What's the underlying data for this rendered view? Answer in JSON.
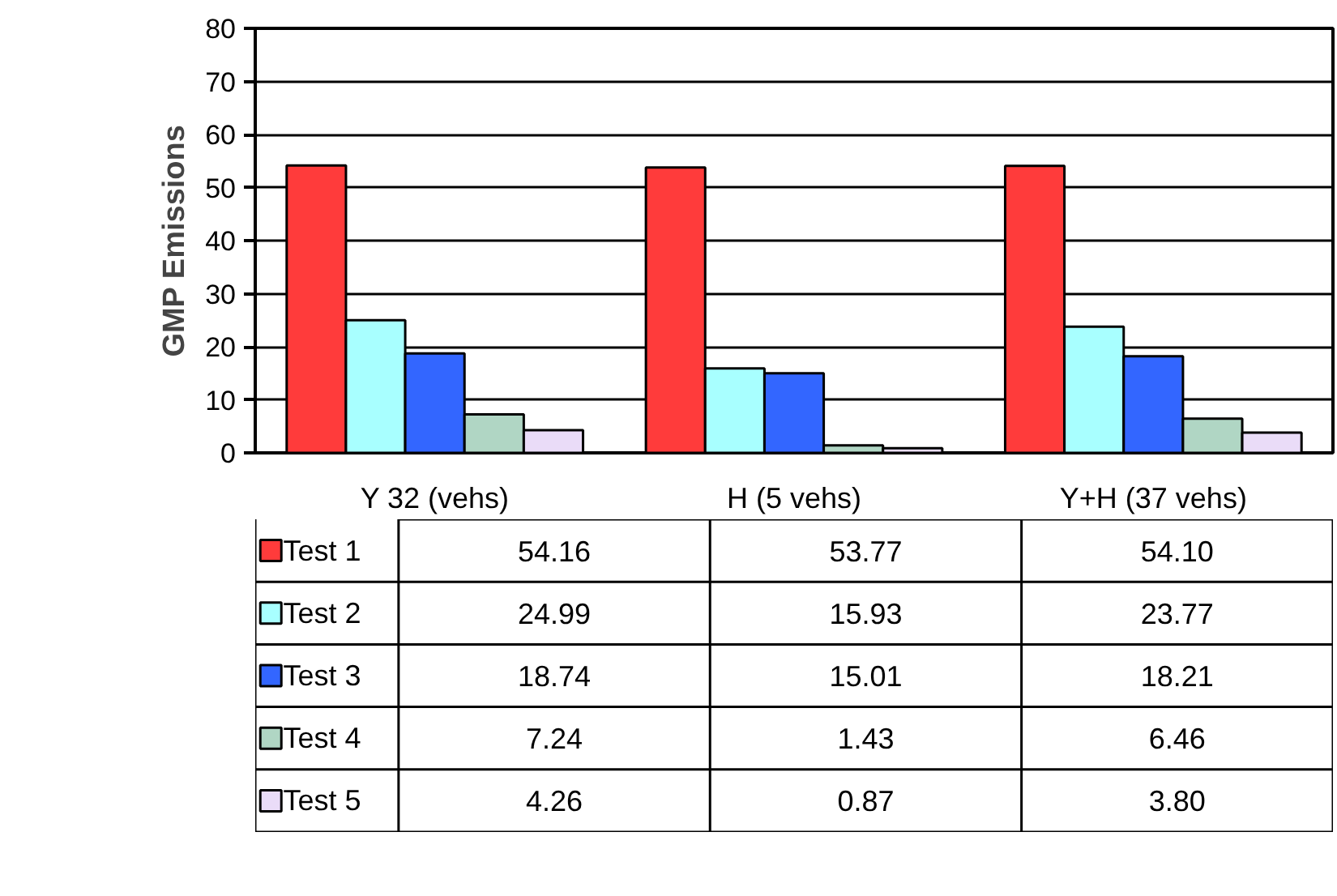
{
  "chart_data": {
    "type": "bar",
    "ylabel": "GMP Emissions",
    "categories": [
      "Y 32 (vehs)",
      "H (5 vehs)",
      "Y+H (37 vehs)"
    ],
    "series": [
      {
        "name": "Test 1",
        "color": "#ff3b3b",
        "values": [
          54.16,
          53.77,
          54.1
        ],
        "value_labels": [
          "54.16",
          "53.77",
          "54.10"
        ]
      },
      {
        "name": "Test 2",
        "color": "#a8ffff",
        "values": [
          24.99,
          15.93,
          23.77
        ],
        "value_labels": [
          "24.99",
          "15.93",
          "23.77"
        ]
      },
      {
        "name": "Test 3",
        "color": "#3366ff",
        "values": [
          18.74,
          15.01,
          18.21
        ],
        "value_labels": [
          "18.74",
          "15.01",
          "18.21"
        ]
      },
      {
        "name": "Test 4",
        "color": "#b0d6c4",
        "values": [
          7.24,
          1.43,
          6.46
        ],
        "value_labels": [
          "7.24",
          "1.43",
          "6.46"
        ]
      },
      {
        "name": "Test 5",
        "color": "#eadcf8",
        "values": [
          4.26,
          0.87,
          3.8
        ],
        "value_labels": [
          "4.26",
          "0.87",
          "3.80"
        ]
      }
    ],
    "ylim": [
      0,
      80
    ],
    "yticks": [
      0,
      10,
      20,
      30,
      40,
      50,
      60,
      70,
      80
    ],
    "grid": "y",
    "legend": "bottom"
  }
}
